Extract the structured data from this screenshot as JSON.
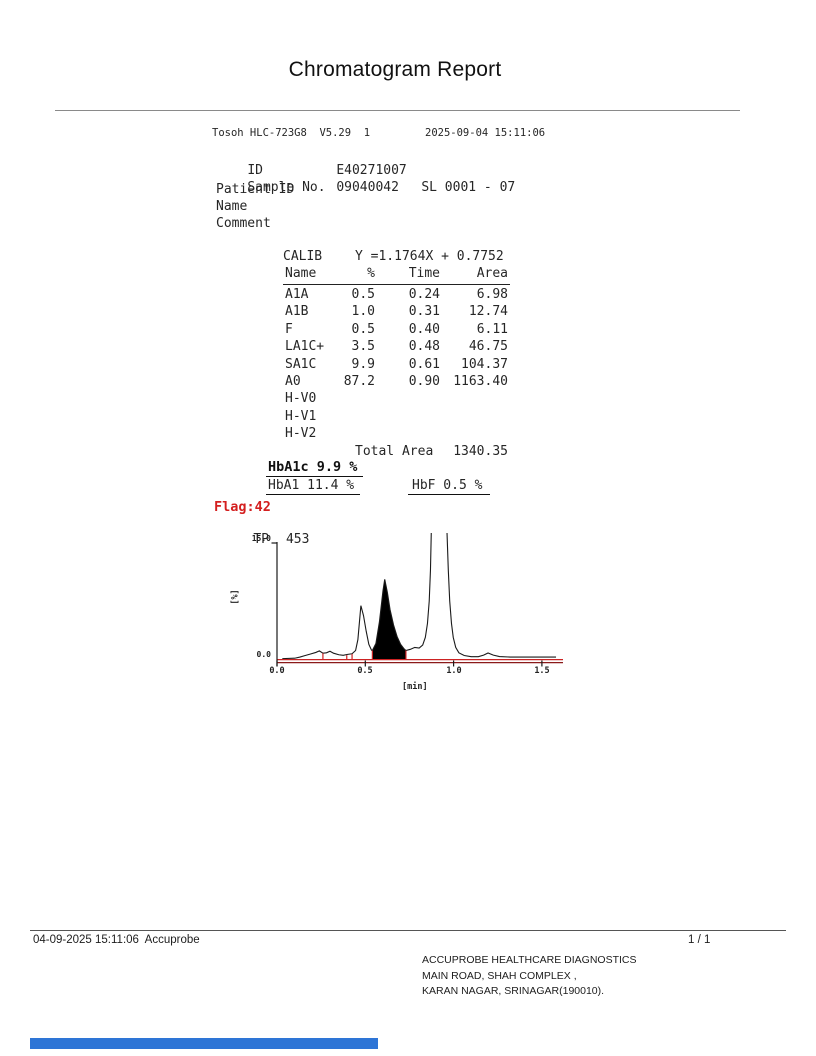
{
  "title": "Chromatogram Report",
  "header": {
    "device": "Tosoh HLC-723G8  V5.29  1",
    "datetime": "2025-09-04 15:11:06",
    "fields": [
      {
        "label": "ID",
        "value": "E40271007",
        "extra": ""
      },
      {
        "label": "Sample No.",
        "value": "09040042",
        "extra": "SL 0001 - 07"
      },
      {
        "label": "Patient ID",
        "value": "",
        "extra": ""
      },
      {
        "label": "Name",
        "value": "",
        "extra": ""
      },
      {
        "label": "Comment",
        "value": "",
        "extra": ""
      }
    ]
  },
  "calib": {
    "label": "CALIB",
    "formula": "Y =1.1764X + 0.7752",
    "headers": [
      "Name",
      "%",
      "Time",
      "Area"
    ],
    "rows": [
      [
        "A1A",
        "0.5",
        "0.24",
        "6.98"
      ],
      [
        "A1B",
        "1.0",
        "0.31",
        "12.74"
      ],
      [
        "F",
        "0.5",
        "0.40",
        "6.11"
      ],
      [
        "LA1C+",
        "3.5",
        "0.48",
        "46.75"
      ],
      [
        "SA1C",
        "9.9",
        "0.61",
        "104.37"
      ],
      [
        "A0",
        "87.2",
        "0.90",
        "1163.40"
      ],
      [
        "H-V0",
        "",
        "",
        ""
      ],
      [
        "H-V1",
        "",
        "",
        ""
      ],
      [
        "H-V2",
        "",
        "",
        ""
      ]
    ],
    "total_label": "Total Area",
    "total_value": "1340.35"
  },
  "results": {
    "hba1c": "HbA1c 9.9 %",
    "hba1": "HbA1 11.4 %",
    "hbf": "HbF 0.5 %",
    "flag": "Flag:42",
    "flag_color": "#d41f1f",
    "tp_label": "TP",
    "tp_value": "453"
  },
  "chart_data": {
    "type": "area",
    "title": "",
    "xlabel": "[min]",
    "ylabel": "[%]",
    "xlim": [
      0,
      1.62
    ],
    "ylim": [
      0,
      15
    ],
    "x_ticks": [
      "0.0",
      "0.5",
      "1.0",
      "1.5"
    ],
    "x_tick_values": [
      0,
      0.5,
      1.0,
      1.5
    ],
    "y_ticks": [
      "0.0",
      "15.0"
    ],
    "grid": false,
    "legend": "none",
    "trace_color": "#1a1a1a",
    "baseline_color": "#cc2222",
    "baseline2_color": "#8b1a1a",
    "fill_color": "#000000",
    "peaks": [
      {
        "name": "A1A",
        "time": 0.24,
        "pct": 0.5,
        "area": 6.98
      },
      {
        "name": "A1B",
        "time": 0.31,
        "pct": 1.0,
        "area": 12.74
      },
      {
        "name": "F",
        "time": 0.4,
        "pct": 0.5,
        "area": 6.11
      },
      {
        "name": "LA1C+",
        "time": 0.48,
        "pct": 3.5,
        "area": 46.75
      },
      {
        "name": "SA1C",
        "time": 0.61,
        "pct": 9.9,
        "area": 104.37,
        "filled": true
      },
      {
        "name": "A0",
        "time": 0.9,
        "pct": 87.2,
        "area": 1163.4,
        "offscale": true
      }
    ],
    "fill_region": {
      "from": 0.54,
      "to": 0.73
    },
    "markers": [
      [
        0.26,
        0.75
      ],
      [
        0.395,
        0.5
      ],
      [
        0.425,
        0.65
      ],
      [
        0.54,
        1.1
      ],
      [
        0.73,
        1.1
      ]
    ],
    "trace": [
      [
        0.03,
        0.05
      ],
      [
        0.1,
        0.1
      ],
      [
        0.13,
        0.25
      ],
      [
        0.16,
        0.45
      ],
      [
        0.19,
        0.65
      ],
      [
        0.22,
        0.85
      ],
      [
        0.24,
        1.05
      ],
      [
        0.26,
        0.75
      ],
      [
        0.28,
        0.8
      ],
      [
        0.3,
        1.0
      ],
      [
        0.32,
        0.75
      ],
      [
        0.35,
        0.55
      ],
      [
        0.375,
        0.48
      ],
      [
        0.4,
        0.6
      ],
      [
        0.425,
        0.68
      ],
      [
        0.445,
        1.1
      ],
      [
        0.458,
        2.5
      ],
      [
        0.475,
        6.9
      ],
      [
        0.49,
        5.6
      ],
      [
        0.505,
        3.6
      ],
      [
        0.52,
        1.9
      ],
      [
        0.535,
        1.15
      ],
      [
        0.54,
        1.1
      ],
      [
        0.56,
        2.0
      ],
      [
        0.58,
        4.8
      ],
      [
        0.6,
        8.8
      ],
      [
        0.61,
        10.3
      ],
      [
        0.625,
        8.6
      ],
      [
        0.64,
        6.4
      ],
      [
        0.66,
        4.4
      ],
      [
        0.68,
        2.9
      ],
      [
        0.7,
        1.9
      ],
      [
        0.72,
        1.3
      ],
      [
        0.73,
        1.1
      ],
      [
        0.755,
        1.25
      ],
      [
        0.78,
        1.5
      ],
      [
        0.805,
        1.42
      ],
      [
        0.825,
        1.8
      ],
      [
        0.84,
        2.8
      ],
      [
        0.852,
        4.6
      ],
      [
        0.862,
        7.5
      ],
      [
        0.869,
        11.5
      ],
      [
        0.874,
        16.8
      ],
      [
        0.962,
        16.8
      ],
      [
        0.97,
        11.5
      ],
      [
        0.978,
        7.5
      ],
      [
        0.988,
        4.6
      ],
      [
        0.998,
        2.8
      ],
      [
        1.012,
        1.5
      ],
      [
        1.03,
        0.8
      ],
      [
        1.06,
        0.45
      ],
      [
        1.1,
        0.3
      ],
      [
        1.14,
        0.3
      ],
      [
        1.17,
        0.5
      ],
      [
        1.195,
        0.78
      ],
      [
        1.225,
        0.5
      ],
      [
        1.26,
        0.32
      ],
      [
        1.32,
        0.25
      ],
      [
        1.4,
        0.25
      ],
      [
        1.5,
        0.25
      ],
      [
        1.58,
        0.25
      ]
    ]
  },
  "footer": {
    "left": "04-09-2025 15:11:06  Accuprobe",
    "page": "1 / 1",
    "address": [
      "ACCUPROBE HEALTHCARE DIAGNOSTICS",
      "MAIN ROAD, SHAH COMPLEX ,",
      "KARAN NAGAR, SRINAGAR(190010)."
    ],
    "bar_color": "#2e75d6"
  }
}
